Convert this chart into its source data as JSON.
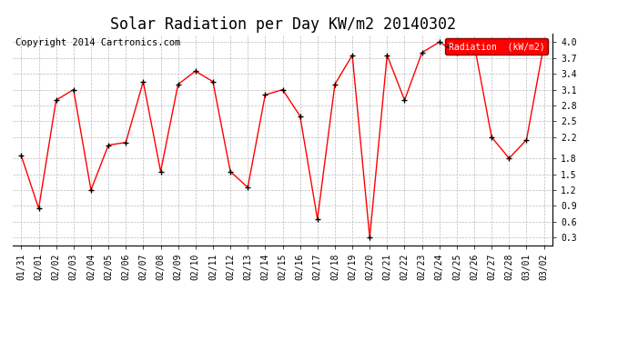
{
  "title": "Solar Radiation per Day KW/m2 20140302",
  "copyright": "Copyright 2014 Cartronics.com",
  "legend_label": "Radiation  (kW/m2)",
  "dates": [
    "01/31",
    "02/01",
    "02/02",
    "02/03",
    "02/04",
    "02/05",
    "02/06",
    "02/07",
    "02/08",
    "02/09",
    "02/10",
    "02/11",
    "02/12",
    "02/13",
    "02/14",
    "02/15",
    "02/16",
    "02/17",
    "02/18",
    "02/19",
    "02/20",
    "02/21",
    "02/22",
    "02/23",
    "02/24",
    "02/25",
    "02/26",
    "02/27",
    "02/28",
    "03/01",
    "03/02"
  ],
  "values": [
    1.85,
    0.85,
    2.9,
    3.1,
    1.2,
    2.05,
    2.1,
    3.25,
    1.55,
    3.2,
    3.45,
    3.25,
    1.55,
    1.25,
    3.0,
    3.1,
    2.6,
    0.65,
    3.2,
    3.75,
    0.3,
    3.75,
    2.9,
    3.8,
    4.0,
    3.8,
    3.95,
    2.2,
    1.8,
    2.15,
    3.95
  ],
  "line_color": "red",
  "marker_color": "black",
  "background_color": "#ffffff",
  "grid_color": "#bbbbbb",
  "ylim": [
    0.15,
    4.15
  ],
  "yticks": [
    0.3,
    0.6,
    0.9,
    1.2,
    1.5,
    1.8,
    2.2,
    2.5,
    2.8,
    3.1,
    3.4,
    3.7,
    4.0
  ],
  "legend_bg": "red",
  "legend_text_color": "white",
  "title_fontsize": 12,
  "tick_fontsize": 7,
  "copyright_fontsize": 7.5
}
